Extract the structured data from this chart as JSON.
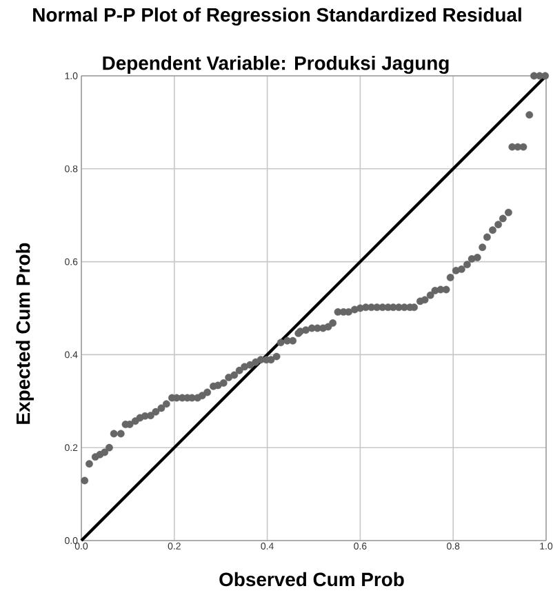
{
  "chart_data": {
    "type": "scatter",
    "title": "Normal P-P Plot of Regression Standardized Residual",
    "subtitle": "Dependent Variable: Produksi Jagung",
    "xlabel": "Observed Cum Prob",
    "ylabel": "Expected Cum Prob",
    "xlim": [
      0,
      1
    ],
    "ylim": [
      0,
      1
    ],
    "xticks": [
      {
        "value": 0,
        "label": "0.0"
      },
      {
        "value": 0.2,
        "label": "0.2"
      },
      {
        "value": 0.4,
        "label": "0.4"
      },
      {
        "value": 0.6,
        "label": "0.6"
      },
      {
        "value": 0.8,
        "label": "0.8"
      },
      {
        "value": 1,
        "label": "1.0"
      }
    ],
    "yticks": [
      {
        "value": 0,
        "label": "0.0"
      },
      {
        "value": 0.2,
        "label": "0.2"
      },
      {
        "value": 0.4,
        "label": "0.4"
      },
      {
        "value": 0.6,
        "label": "0.6"
      },
      {
        "value": 0.8,
        "label": "0.8"
      },
      {
        "value": 1,
        "label": "1.0"
      }
    ],
    "grid": true,
    "series": [
      {
        "marker": "circle",
        "color": "#666666",
        "x": [
          0.007,
          0.017,
          0.03,
          0.04,
          0.05,
          0.06,
          0.07,
          0.085,
          0.095,
          0.104,
          0.116,
          0.126,
          0.137,
          0.149,
          0.16,
          0.172,
          0.183,
          0.195,
          0.205,
          0.217,
          0.228,
          0.238,
          0.25,
          0.26,
          0.271,
          0.284,
          0.294,
          0.306,
          0.317,
          0.329,
          0.34,
          0.351,
          0.363,
          0.375,
          0.386,
          0.398,
          0.408,
          0.42,
          0.429,
          0.443,
          0.455,
          0.467,
          0.471,
          0.483,
          0.496,
          0.508,
          0.52,
          0.531,
          0.541,
          0.552,
          0.564,
          0.575,
          0.588,
          0.6,
          0.612,
          0.624,
          0.636,
          0.648,
          0.66,
          0.671,
          0.683,
          0.695,
          0.707,
          0.716,
          0.729,
          0.739,
          0.751,
          0.761,
          0.773,
          0.785,
          0.794,
          0.806,
          0.818,
          0.83,
          0.84,
          0.852,
          0.863,
          0.873,
          0.885,
          0.897,
          0.907,
          0.919,
          0.927,
          0.939,
          0.951,
          0.964,
          0.974,
          0.986,
          0.998
        ],
        "values": [
          0.129,
          0.165,
          0.18,
          0.185,
          0.19,
          0.2,
          0.23,
          0.23,
          0.25,
          0.25,
          0.257,
          0.264,
          0.268,
          0.269,
          0.277,
          0.285,
          0.294,
          0.307,
          0.307,
          0.307,
          0.307,
          0.307,
          0.307,
          0.312,
          0.319,
          0.332,
          0.334,
          0.339,
          0.351,
          0.356,
          0.366,
          0.374,
          0.378,
          0.384,
          0.389,
          0.389,
          0.389,
          0.396,
          0.426,
          0.43,
          0.43,
          0.446,
          0.45,
          0.453,
          0.457,
          0.457,
          0.457,
          0.46,
          0.468,
          0.492,
          0.492,
          0.492,
          0.497,
          0.5,
          0.502,
          0.502,
          0.502,
          0.502,
          0.502,
          0.502,
          0.502,
          0.502,
          0.502,
          0.502,
          0.515,
          0.518,
          0.528,
          0.538,
          0.54,
          0.54,
          0.566,
          0.581,
          0.584,
          0.594,
          0.606,
          0.609,
          0.631,
          0.653,
          0.668,
          0.68,
          0.693,
          0.706,
          0.847,
          0.847,
          0.847,
          0.916,
          1.0,
          1.0,
          1.0
        ]
      },
      {
        "type": "line",
        "marker": "none",
        "color": "#000000",
        "x": [
          0,
          1
        ],
        "values": [
          0,
          1
        ]
      }
    ]
  }
}
